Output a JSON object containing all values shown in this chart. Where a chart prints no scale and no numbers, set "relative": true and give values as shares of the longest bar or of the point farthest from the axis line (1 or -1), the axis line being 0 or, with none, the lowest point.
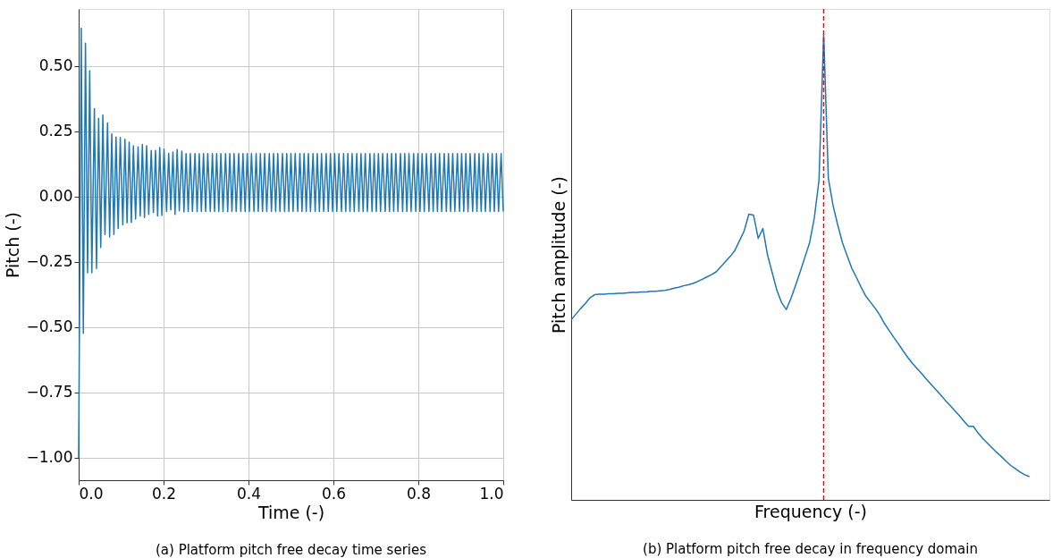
{
  "chart_data": [
    {
      "type": "line",
      "title": "(a) Platform pitch free decay time series",
      "xlabel": "Time (-)",
      "ylabel": "Pitch (-)",
      "grid": true,
      "xlim": [
        0,
        1.0
      ],
      "ylim": [
        -1.086,
        0.719
      ],
      "xticks": [
        {
          "value": 0,
          "label": "0.0"
        },
        {
          "value": 0.2,
          "label": "0.2"
        },
        {
          "value": 0.4,
          "label": "0.4"
        },
        {
          "value": 0.6,
          "label": "0.6"
        },
        {
          "value": 0.8,
          "label": "0.8"
        },
        {
          "value": 1.0,
          "label": "1.0"
        }
      ],
      "yticks": [
        {
          "value": -1.0,
          "label": "−1.00"
        },
        {
          "value": -0.75,
          "label": "−0.75"
        },
        {
          "value": -0.5,
          "label": "−0.50"
        },
        {
          "value": -0.25,
          "label": "−0.25"
        },
        {
          "value": 0,
          "label": "0.00"
        },
        {
          "value": 0.25,
          "label": "0.25"
        },
        {
          "value": 0.5,
          "label": "0.50"
        }
      ],
      "series": [
        {
          "color": "#1f77b4",
          "line_style": "solid",
          "x": [
            0,
            0.006,
            0.011,
            0.016,
            0.021,
            0.026,
            0.031,
            0.037,
            0.042,
            0.047,
            0.052,
            0.057,
            0.062,
            0.068,
            0.073,
            0.078,
            0.083,
            0.088,
            0.093,
            0.098,
            0.104,
            0.109,
            0.114,
            0.119,
            0.124,
            0.129,
            0.134,
            0.14,
            0.145,
            0.15,
            0.155,
            0.16,
            0.165,
            0.171,
            0.176,
            0.181,
            0.186,
            0.191,
            0.196,
            0.201,
            0.207,
            0.212,
            0.217,
            0.222,
            0.227,
            0.232,
            0.237,
            0.243,
            0.248,
            0.253,
            0.258,
            0.263,
            0.268,
            0.274,
            0.279,
            0.284,
            0.289,
            0.294,
            0.299,
            0.304,
            0.31,
            0.315,
            0.32,
            0.325,
            0.33,
            0.335,
            0.34,
            0.346,
            0.351,
            0.356,
            0.361,
            0.366,
            0.371,
            0.377,
            0.382,
            0.387,
            0.392,
            0.397,
            0.402,
            0.407,
            0.413,
            0.418,
            0.423,
            0.428,
            0.433,
            0.438,
            0.443,
            0.449,
            0.454,
            0.459,
            0.464,
            0.469,
            0.474,
            0.48,
            0.485,
            0.49,
            0.495,
            0.5,
            0.505,
            0.51,
            0.516,
            0.521,
            0.526,
            0.531,
            0.536,
            0.541,
            0.546,
            0.552,
            0.557,
            0.562,
            0.567,
            0.572,
            0.577,
            0.583,
            0.588,
            0.593,
            0.598,
            0.603,
            0.608,
            0.613,
            0.619,
            0.624,
            0.629,
            0.634,
            0.639,
            0.644,
            0.649,
            0.655,
            0.66,
            0.665,
            0.67,
            0.675,
            0.68,
            0.686,
            0.691,
            0.696,
            0.701,
            0.706,
            0.711,
            0.716,
            0.722,
            0.727,
            0.732,
            0.737,
            0.742,
            0.747,
            0.752,
            0.758,
            0.763,
            0.768,
            0.773,
            0.778,
            0.783,
            0.789,
            0.794,
            0.799,
            0.804,
            0.809,
            0.814,
            0.819,
            0.825,
            0.83,
            0.835,
            0.84,
            0.845,
            0.85,
            0.855,
            0.861,
            0.866,
            0.871,
            0.876,
            0.881,
            0.886,
            0.892,
            0.897,
            0.902,
            0.907,
            0.912,
            0.917,
            0.922,
            0.928,
            0.933,
            0.938,
            0.943,
            0.948,
            0.953,
            0.958,
            0.964,
            0.969,
            0.974,
            0.979,
            0.984,
            0.989,
            0.995,
            1.0
          ],
          "values": [
            -1.0,
            0.645,
            -0.523,
            0.588,
            -0.291,
            0.483,
            -0.291,
            0.337,
            -0.275,
            0.3,
            -0.195,
            0.312,
            -0.145,
            0.282,
            -0.154,
            0.24,
            -0.145,
            0.228,
            -0.122,
            0.227,
            -0.108,
            0.22,
            -0.1,
            0.209,
            -0.099,
            0.195,
            -0.086,
            0.191,
            -0.074,
            0.2,
            -0.08,
            0.195,
            -0.068,
            0.177,
            -0.061,
            0.177,
            -0.074,
            0.188,
            -0.072,
            0.182,
            -0.057,
            0.166,
            -0.051,
            0.171,
            -0.068,
            0.18,
            -0.054,
            0.174,
            -0.058,
            0.165,
            -0.057,
            0.165,
            -0.057,
            0.165,
            -0.057,
            0.165,
            -0.057,
            0.165,
            -0.057,
            0.165,
            -0.057,
            0.165,
            -0.057,
            0.165,
            -0.057,
            0.165,
            -0.057,
            0.165,
            -0.057,
            0.165,
            -0.057,
            0.165,
            -0.057,
            0.165,
            -0.057,
            0.165,
            -0.057,
            0.165,
            -0.057,
            0.165,
            -0.057,
            0.165,
            -0.057,
            0.165,
            -0.057,
            0.165,
            -0.057,
            0.165,
            -0.057,
            0.165,
            -0.057,
            0.165,
            -0.057,
            0.165,
            -0.057,
            0.165,
            -0.057,
            0.165,
            -0.057,
            0.165,
            -0.057,
            0.165,
            -0.057,
            0.165,
            -0.057,
            0.165,
            -0.057,
            0.165,
            -0.057,
            0.165,
            -0.057,
            0.165,
            -0.057,
            0.165,
            -0.057,
            0.165,
            -0.057,
            0.165,
            -0.057,
            0.165,
            -0.057,
            0.165,
            -0.057,
            0.165,
            -0.057,
            0.165,
            -0.057,
            0.165,
            -0.057,
            0.165,
            -0.057,
            0.165,
            -0.057,
            0.165,
            -0.057,
            0.165,
            -0.057,
            0.165,
            -0.057,
            0.165,
            -0.057,
            0.165,
            -0.057,
            0.165,
            -0.057,
            0.165,
            -0.057,
            0.165,
            -0.057,
            0.165,
            -0.057,
            0.165,
            -0.057,
            0.165,
            -0.057,
            0.165,
            -0.057,
            0.165,
            -0.057,
            0.165,
            -0.057,
            0.165,
            -0.057,
            0.165,
            -0.057,
            0.165,
            -0.057,
            0.165,
            -0.057,
            0.165,
            -0.057,
            0.165,
            -0.057,
            0.165,
            -0.057,
            0.165,
            -0.057,
            0.165,
            -0.057,
            0.165,
            -0.057,
            0.165,
            -0.057,
            0.165,
            -0.057,
            0.165,
            -0.057,
            0.165,
            -0.057,
            0.165,
            -0.057,
            0.165,
            -0.057,
            0.165,
            -0.057
          ]
        }
      ]
    },
    {
      "type": "line",
      "title": "(b) Platform pitch free decay in frequency domain",
      "xlabel": "Frequency (-)",
      "ylabel": "Pitch amplitude (-)",
      "relative": true,
      "tick_labels": false,
      "categories": [
        null,
        null,
        null,
        null,
        null,
        null,
        null,
        null,
        null,
        null,
        null,
        null,
        null,
        null,
        null,
        null,
        null,
        null,
        null,
        null,
        null,
        null,
        null,
        null,
        null,
        null,
        null,
        null,
        null,
        null,
        null,
        null,
        null,
        null,
        null,
        null,
        null,
        null,
        null,
        null,
        null,
        null,
        null,
        null,
        null,
        null,
        null,
        null,
        null,
        null,
        null,
        null,
        null,
        null,
        null,
        null,
        null,
        null,
        null,
        null,
        null,
        null,
        null,
        null,
        null,
        null,
        null,
        null,
        null,
        null,
        null,
        null,
        null,
        null,
        null,
        null,
        null,
        null,
        null,
        null,
        null,
        null,
        null,
        null,
        null,
        null,
        null,
        null,
        null,
        null,
        null,
        null,
        null,
        null,
        null,
        null,
        null,
        null,
        null
      ],
      "series": [
        {
          "color": "#1f77b4",
          "line_style": "solid",
          "values": [
            0.387,
            0.399,
            0.411,
            0.422,
            0.434,
            0.441,
            0.442,
            0.442,
            0.443,
            0.443,
            0.444,
            0.444,
            0.445,
            0.446,
            0.446,
            0.447,
            0.447,
            0.448,
            0.448,
            0.449,
            0.45,
            0.452,
            0.455,
            0.457,
            0.46,
            0.462,
            0.465,
            0.469,
            0.474,
            0.479,
            0.484,
            0.49,
            0.501,
            0.512,
            0.523,
            0.536,
            0.557,
            0.578,
            0.614,
            0.612,
            0.562,
            0.583,
            0.526,
            0.488,
            0.45,
            0.424,
            0.409,
            0.433,
            0.461,
            0.491,
            0.522,
            0.553,
            0.606,
            0.687,
            1.0,
            0.691,
            0.633,
            0.591,
            0.553,
            0.525,
            0.498,
            0.478,
            0.457,
            0.438,
            0.425,
            0.412,
            0.397,
            0.379,
            0.364,
            0.349,
            0.335,
            0.32,
            0.306,
            0.293,
            0.282,
            0.271,
            0.259,
            0.248,
            0.237,
            0.226,
            0.214,
            0.203,
            0.192,
            0.181,
            0.169,
            0.158,
            0.158,
            0.144,
            0.132,
            0.122,
            0.112,
            0.102,
            0.093,
            0.083,
            0.074,
            0.067,
            0.06,
            0.054,
            0.05
          ]
        }
      ],
      "ref_lines": [
        {
          "axis": "x",
          "color": "#ff0000",
          "line_style": "dashed"
        }
      ]
    }
  ]
}
